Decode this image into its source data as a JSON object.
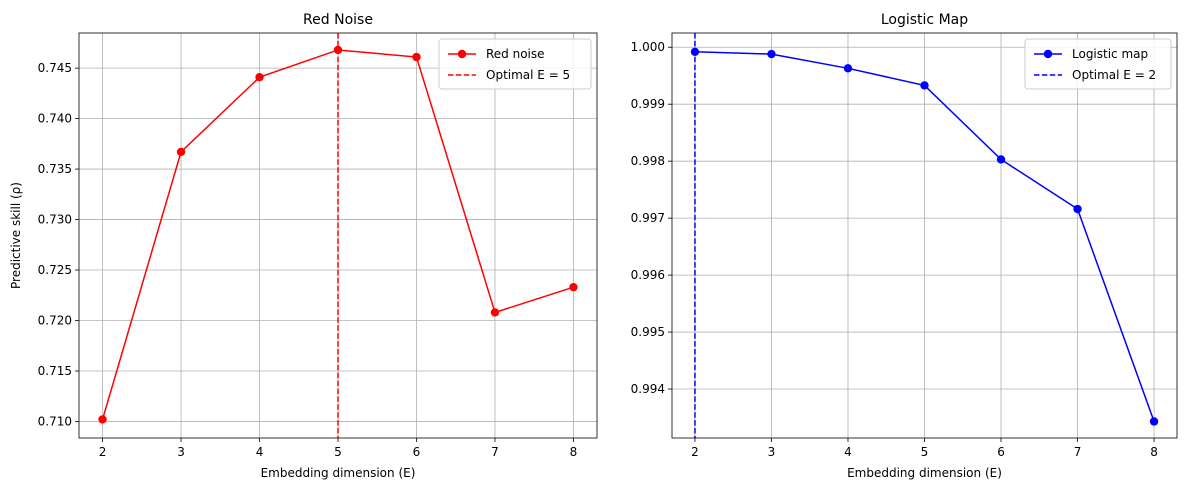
{
  "chart_data": [
    {
      "type": "line",
      "title": "Red Noise",
      "xlabel": "Embedding dimension (E)",
      "ylabel": "Predictive skill (ρ)",
      "x": [
        2,
        3,
        4,
        5,
        6,
        7,
        8
      ],
      "xlim": [
        1.7,
        8.3
      ],
      "ylim": [
        0.70836,
        0.74848
      ],
      "xticks": [
        2,
        3,
        4,
        5,
        6,
        7,
        8
      ],
      "yticks": [
        0.71,
        0.715,
        0.72,
        0.725,
        0.73,
        0.735,
        0.74,
        0.745
      ],
      "ytick_labels": [
        "0.710",
        "0.715",
        "0.720",
        "0.725",
        "0.730",
        "0.735",
        "0.740",
        "0.745"
      ],
      "grid": true,
      "legend_position": "top-right",
      "series": [
        {
          "name": "Red noise",
          "color": "#ff0000",
          "marker": "circle",
          "values": [
            0.7102,
            0.7367,
            0.7441,
            0.7468,
            0.7461,
            0.7208,
            0.7233
          ]
        }
      ],
      "vlines": [
        {
          "name": "Optimal E = 5",
          "x": 5,
          "color": "#ff0000",
          "style": "dashed"
        }
      ]
    },
    {
      "type": "line",
      "title": "Logistic Map",
      "xlabel": "Embedding dimension (E)",
      "ylabel": "",
      "x": [
        2,
        3,
        4,
        5,
        6,
        7,
        8
      ],
      "xlim": [
        1.7,
        8.3
      ],
      "ylim": [
        0.99314,
        1.00025
      ],
      "xticks": [
        2,
        3,
        4,
        5,
        6,
        7,
        8
      ],
      "yticks": [
        0.994,
        0.995,
        0.996,
        0.997,
        0.998,
        0.999,
        1.0
      ],
      "ytick_labels": [
        "0.994",
        "0.995",
        "0.996",
        "0.997",
        "0.998",
        "0.999",
        "1.000"
      ],
      "grid": true,
      "legend_position": "top-right",
      "series": [
        {
          "name": "Logistic map",
          "color": "#0000ff",
          "marker": "circle",
          "values": [
            0.99992,
            0.99988,
            0.99963,
            0.99933,
            0.99803,
            0.99716,
            0.99343
          ]
        }
      ],
      "vlines": [
        {
          "name": "Optimal E = 2",
          "x": 2,
          "color": "#0000ff",
          "style": "dashed"
        }
      ]
    }
  ]
}
